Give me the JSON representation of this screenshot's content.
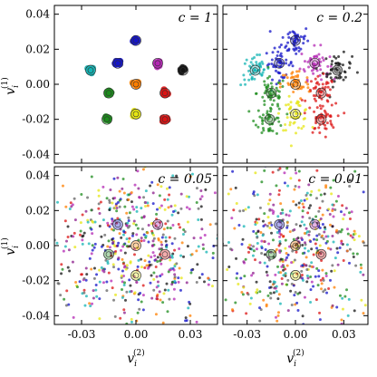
{
  "chart_data": {
    "type": "scatter",
    "layout": {
      "rows": 2,
      "cols": 2,
      "shared_x": true,
      "shared_y": true
    },
    "xlim": [
      -0.045,
      0.045
    ],
    "ylim": [
      -0.045,
      0.045
    ],
    "x_ticks": [
      "-0.03",
      "0.00",
      "0.03"
    ],
    "x_tick_values": [
      -0.03,
      0.0,
      0.03
    ],
    "y_ticks": [
      "0.04",
      "0.02",
      "0.00",
      "-0.02",
      "-0.04"
    ],
    "y_tick_values": [
      0.04,
      0.02,
      0.0,
      -0.02,
      -0.04
    ],
    "xlabel": {
      "base": "v",
      "sub": "i",
      "sup": "(2)"
    },
    "ylabel": {
      "base": "v",
      "sub": "i",
      "sup": "(1)"
    },
    "grid": false,
    "legend": "none",
    "cluster_colors": [
      "#1414c8",
      "#b428b4",
      "#dc1414",
      "#e6e614",
      "#1e8c1e",
      "#14b4b4",
      "#141414",
      "#ff7f00",
      "#8c1e8c",
      "#646464"
    ],
    "cluster_centers": [
      {
        "x": 0.0,
        "y": 0.025,
        "color": "#1414c8"
      },
      {
        "x": 0.012,
        "y": 0.012,
        "color": "#b428b4"
      },
      {
        "x": 0.026,
        "y": 0.008,
        "color": "#141414"
      },
      {
        "x": -0.01,
        "y": 0.012,
        "color": "#1414c8"
      },
      {
        "x": -0.025,
        "y": 0.008,
        "color": "#14b4b4"
      },
      {
        "x": -0.015,
        "y": -0.005,
        "color": "#1e8c1e"
      },
      {
        "x": 0.016,
        "y": -0.005,
        "color": "#dc1414"
      },
      {
        "x": -0.016,
        "y": -0.02,
        "color": "#1e8c1e"
      },
      {
        "x": 0.0,
        "y": -0.017,
        "color": "#e6e614"
      },
      {
        "x": 0.016,
        "y": -0.02,
        "color": "#dc1414"
      },
      {
        "x": 0.0,
        "y": 0.0,
        "color": "#ff7f00"
      }
    ],
    "panels": [
      {
        "label": "c = 1",
        "spread": 0.0008,
        "n_per_cluster": 12
      },
      {
        "label": "c = 0.2",
        "spread": 0.0045,
        "n_per_cluster": 45
      },
      {
        "label": "c = 0.05",
        "spread": 0.018,
        "n_per_cluster": 55
      },
      {
        "label": "c = 0.01",
        "spread": 0.02,
        "n_per_cluster": 55
      }
    ]
  }
}
